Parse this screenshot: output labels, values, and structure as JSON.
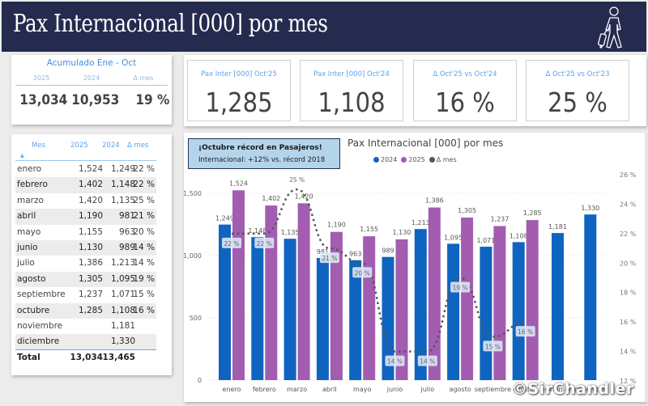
{
  "header": {
    "title": "Pax Internacional [000] por mes",
    "icon": "traveler-with-suitcase-icon"
  },
  "accumulated": {
    "title": "Acumulado Ene - Oct",
    "columns": [
      "2025",
      "2024",
      "Δ mes"
    ],
    "values": [
      "13,034",
      "10,953",
      "19 %"
    ]
  },
  "kpis": [
    {
      "label": "Pax Inter [000] Oct'25",
      "value": "1,285"
    },
    {
      "label": "Pax Inter [000] Oct'24",
      "value": "1,108"
    },
    {
      "label": "Δ Oct'25 vs Oct'24",
      "value": "16 %"
    },
    {
      "label": "Δ Oct'25 vs Oct'23",
      "value": "25 %"
    }
  ],
  "table": {
    "headers": [
      "Mes",
      "2025",
      "2024",
      "Δ mes"
    ],
    "rows": [
      [
        "enero",
        "1,524",
        "1,249",
        "22 %"
      ],
      [
        "febrero",
        "1,402",
        "1,148",
        "22 %"
      ],
      [
        "marzo",
        "1,420",
        "1,135",
        "25 %"
      ],
      [
        "abril",
        "1,190",
        "981",
        "21 %"
      ],
      [
        "mayo",
        "1,155",
        "963",
        "20 %"
      ],
      [
        "junio",
        "1,130",
        "989",
        "14 %"
      ],
      [
        "julio",
        "1,386",
        "1,213",
        "14 %"
      ],
      [
        "agosto",
        "1,305",
        "1,095",
        "19 %"
      ],
      [
        "septiembre",
        "1,237",
        "1,071",
        "15 %"
      ],
      [
        "octubre",
        "1,285",
        "1,108",
        "16 %"
      ],
      [
        "noviembre",
        "",
        "1,181",
        ""
      ],
      [
        "diciembre",
        "",
        "1,330",
        ""
      ]
    ],
    "total": [
      "Total",
      "13,034",
      "13,465",
      ""
    ]
  },
  "note": {
    "line1": "¡Octubre récord en Pasajeros!",
    "line2": "Internacional: +12% vs. récord 2018"
  },
  "watermark": "©SirChandler",
  "chart_data": {
    "type": "bar",
    "title": "Pax Internacional [000] por mes",
    "categories": [
      "enero",
      "febrero",
      "marzo",
      "abril",
      "mayo",
      "junio",
      "julio",
      "agosto",
      "septiembre",
      "octubre",
      "noviembre",
      "diciembre"
    ],
    "series": [
      {
        "name": "2024",
        "color": "#0f64c0",
        "values": [
          1249,
          1148,
          1135,
          981,
          963,
          989,
          1213,
          1095,
          1071,
          1108,
          1181,
          1330
        ],
        "labels": [
          "1,249",
          "1,148",
          "1,135",
          "981",
          "963",
          "989",
          "1,213",
          "1,095",
          "1,071",
          "1,108",
          "1,181",
          "1,330"
        ]
      },
      {
        "name": "2025",
        "color": "#a25db0",
        "values": [
          1524,
          1402,
          1420,
          1190,
          1155,
          1130,
          1386,
          1305,
          1237,
          1285,
          null,
          null
        ],
        "labels": [
          "1,524",
          "1,402",
          "1,420",
          "1,190",
          "1,155",
          "1,130",
          "1,386",
          "1,305",
          "1,237",
          "1,285",
          "",
          ""
        ]
      },
      {
        "name": "Δ mes",
        "type": "line",
        "style": "dotted",
        "axis": "right",
        "color": "#555555",
        "values": [
          22,
          22,
          25,
          21,
          20,
          14,
          14,
          19,
          15,
          16,
          null,
          null
        ],
        "labels": [
          "22 %",
          "22 %",
          "25 %",
          "21 %",
          "20 %",
          "14 %",
          "14 %",
          "19 %",
          "15 %",
          "16 %",
          "",
          ""
        ]
      }
    ],
    "legend": [
      "2024",
      "2025",
      "Δ mes"
    ],
    "legend_position": "top-center",
    "y_left": {
      "ticks": [
        "0",
        "500",
        "1,000",
        "1,500"
      ],
      "tick_values": [
        0,
        500,
        1000,
        1500
      ],
      "ylim": [
        0,
        1650
      ]
    },
    "y_right": {
      "ticks": [
        "12 %",
        "14 %",
        "16 %",
        "18 %",
        "20 %",
        "22 %",
        "24 %",
        "26 %"
      ],
      "tick_values": [
        12,
        14,
        16,
        18,
        20,
        22,
        24,
        26
      ],
      "ylim": [
        12,
        26
      ]
    },
    "grid": true
  }
}
